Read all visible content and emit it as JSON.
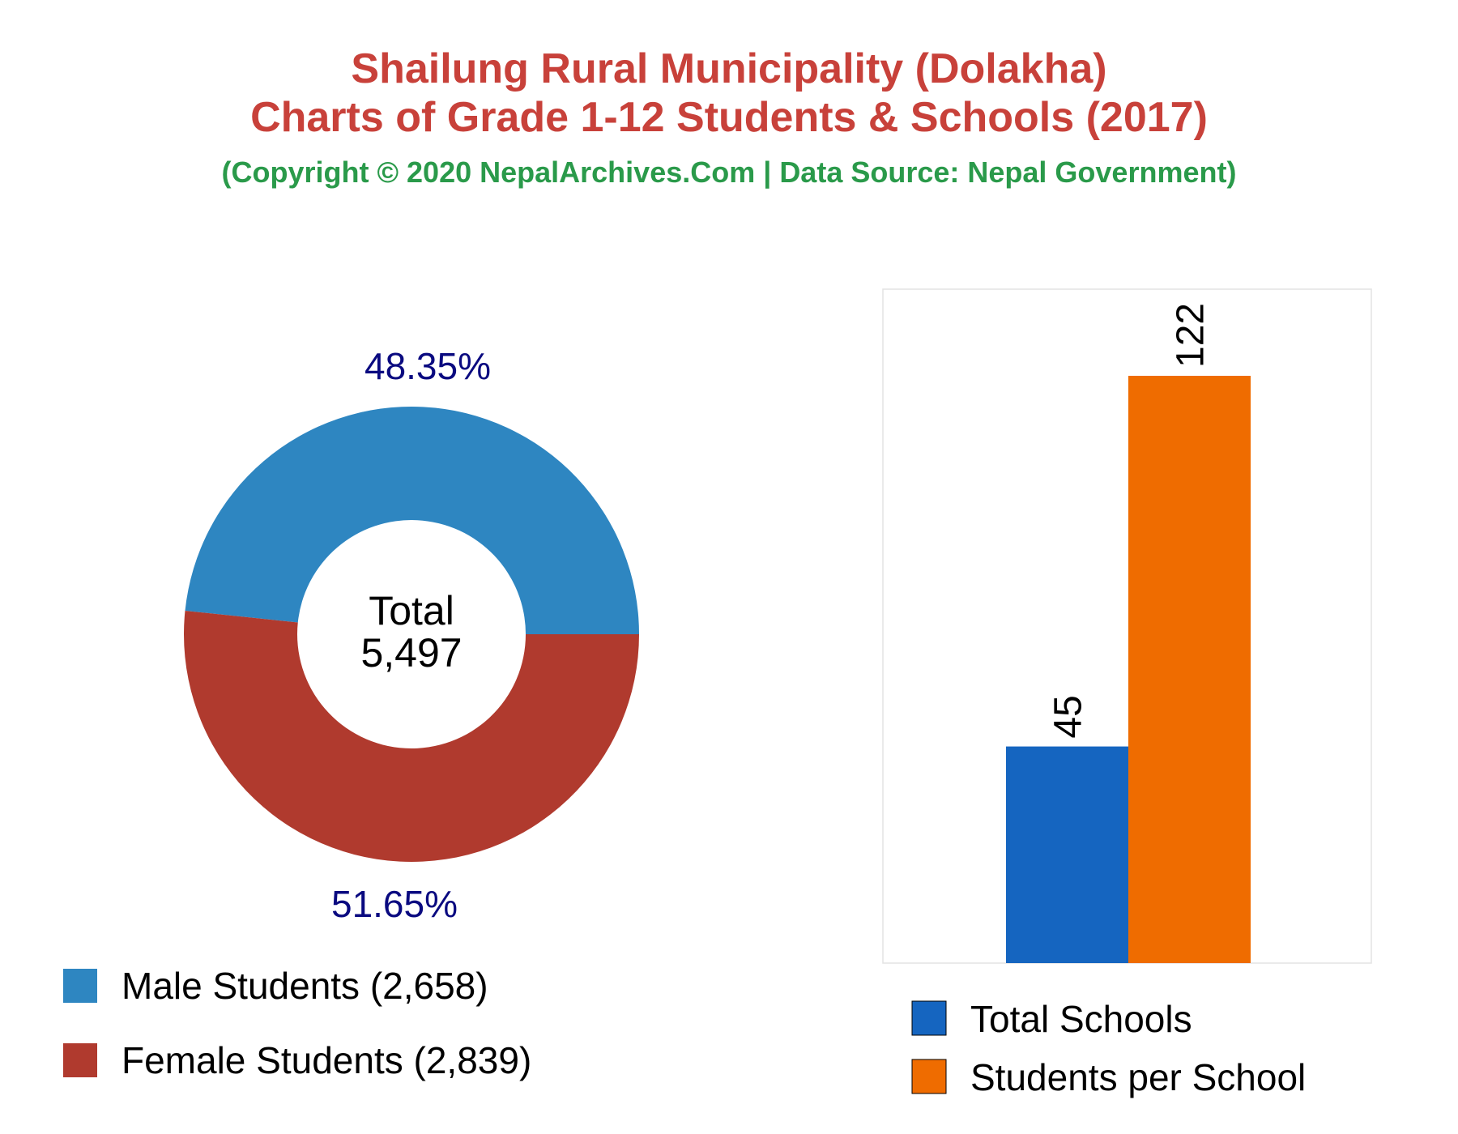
{
  "header": {
    "title_line1": "Shailung Rural Municipality (Dolakha)",
    "title_line2": "Charts of Grade 1-12 Students & Schools (2017)",
    "subtitle": "(Copyright © 2020 NepalArchives.Com | Data Source: Nepal Government)"
  },
  "colors": {
    "title": "#c8413a",
    "subtitle": "#2a9a4a",
    "male": "#2e86c1",
    "female": "#b03a2e",
    "percent_label": "#0a0a80",
    "total_schools": "#1565c0",
    "students_per_school": "#ef6c00"
  },
  "chart_data": [
    {
      "type": "pie",
      "variant": "donut",
      "center_label": "Total",
      "center_value": "5,497",
      "slices": [
        {
          "key": "male",
          "legend": "Male Students (2,658)",
          "value": 2658,
          "percent_label": "48.35%"
        },
        {
          "key": "female",
          "legend": "Female Students (2,839)",
          "value": 2839,
          "percent_label": "51.65%"
        }
      ]
    },
    {
      "type": "bar",
      "ylim": [
        0,
        140
      ],
      "series": [
        {
          "key": "total_schools",
          "name": "Total Schools",
          "value": 45,
          "label": "45"
        },
        {
          "key": "students_per_school",
          "name": "Students per School",
          "value": 122,
          "label": "122"
        }
      ]
    }
  ]
}
